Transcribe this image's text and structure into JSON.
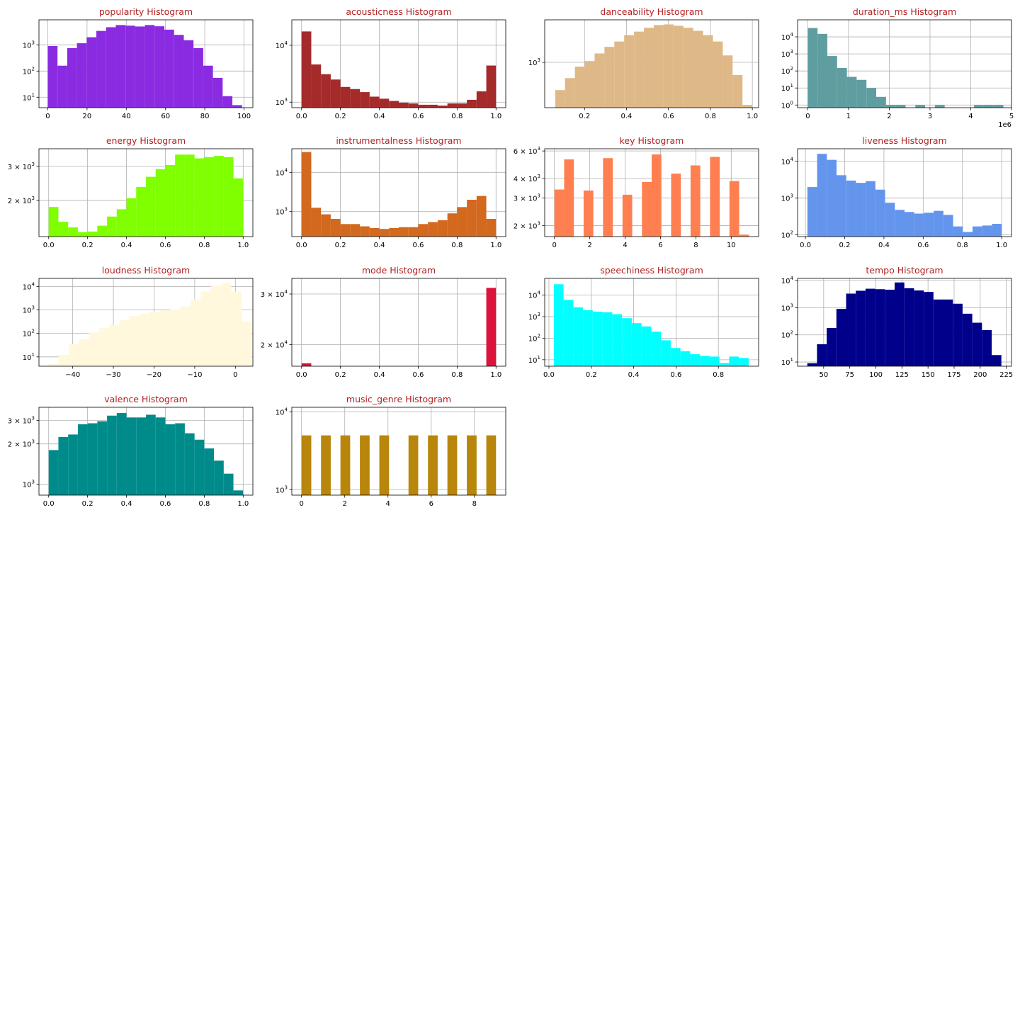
{
  "figure": {
    "background": "#ffffff",
    "title_color": "#b22222"
  },
  "chart_data": [
    {
      "type": "bar",
      "title": "popularity Histogram",
      "color": "#8a2be2",
      "x_range": [
        -4.5,
        104.5
      ],
      "y_scale": "log",
      "y_range": [
        4,
        9000
      ],
      "x_ticks": [
        0,
        20,
        40,
        60,
        80,
        100
      ],
      "x_tick_labels": [
        "0",
        "20",
        "40",
        "60",
        "80",
        "100"
      ],
      "y_ticks": [
        10,
        100,
        1000
      ],
      "y_tick_labels": [
        {
          "base": "10",
          "exp": "1"
        },
        {
          "base": "10",
          "exp": "2"
        },
        {
          "base": "10",
          "exp": "3"
        }
      ],
      "bin_edges": [
        0,
        4.95,
        9.9,
        14.85,
        19.8,
        24.75,
        29.7,
        34.65,
        39.6,
        44.55,
        49.5,
        54.45,
        59.4,
        64.35,
        69.3,
        74.25,
        79.2,
        84.15,
        89.1,
        94.05,
        99
      ],
      "counts": [
        900,
        160,
        750,
        1150,
        1950,
        3400,
        4700,
        5700,
        5400,
        5000,
        5700,
        5100,
        3800,
        2400,
        1500,
        750,
        160,
        55,
        11,
        5
      ]
    },
    {
      "type": "bar",
      "title": "acousticness Histogram",
      "color": "#a52a2a",
      "x_range": [
        -0.05,
        1.05
      ],
      "y_scale": "log",
      "y_range": [
        800,
        28000
      ],
      "x_ticks": [
        0,
        0.2,
        0.4,
        0.6,
        0.8,
        1.0
      ],
      "x_tick_labels": [
        "0.0",
        "0.2",
        "0.4",
        "0.6",
        "0.8",
        "1.0"
      ],
      "y_ticks": [
        1000,
        10000
      ],
      "y_tick_labels": [
        {
          "base": "10",
          "exp": "3"
        },
        {
          "base": "10",
          "exp": "4"
        }
      ],
      "bin_edges": [
        0,
        0.05,
        0.1,
        0.15,
        0.2,
        0.25,
        0.3,
        0.35,
        0.4,
        0.45,
        0.5,
        0.55,
        0.6,
        0.65,
        0.7,
        0.75,
        0.8,
        0.85,
        0.9,
        0.95,
        1.0
      ],
      "counts": [
        17500,
        4600,
        3100,
        2500,
        1850,
        1700,
        1500,
        1250,
        1150,
        1050,
        980,
        950,
        900,
        900,
        870,
        950,
        950,
        1100,
        1550,
        4400
      ]
    },
    {
      "type": "bar",
      "title": "danceability Histogram",
      "color": "#deb887",
      "x_range": [
        0.01,
        1.03
      ],
      "y_scale": "log",
      "y_range": [
        180,
        5000
      ],
      "x_ticks": [
        0.2,
        0.4,
        0.6,
        0.8,
        1.0
      ],
      "x_tick_labels": [
        "0.2",
        "0.4",
        "0.6",
        "0.8",
        "1.0"
      ],
      "y_ticks": [
        1000
      ],
      "y_tick_labels": [
        {
          "base": "10",
          "exp": "3"
        }
      ],
      "bin_edges": [
        0.06,
        0.107,
        0.154,
        0.201,
        0.248,
        0.295,
        0.342,
        0.389,
        0.436,
        0.483,
        0.53,
        0.577,
        0.624,
        0.671,
        0.718,
        0.765,
        0.812,
        0.859,
        0.906,
        0.953,
        1.0
      ],
      "counts": [
        350,
        550,
        850,
        1050,
        1400,
        1800,
        2200,
        2800,
        3200,
        3700,
        4100,
        4200,
        4000,
        3700,
        3300,
        2800,
        2200,
        1300,
        620,
        200
      ]
    },
    {
      "type": "bar",
      "title": "duration_ms Histogram",
      "color": "#5f9ea0",
      "x_range": [
        -250000,
        5000000
      ],
      "y_scale": "log",
      "y_range": [
        0.7,
        100000
      ],
      "x_ticks": [
        0,
        1000000,
        2000000,
        3000000,
        4000000,
        5000000
      ],
      "x_tick_labels": [
        "0",
        "1",
        "2",
        "3",
        "4",
        "5"
      ],
      "x_offset_label": "1e6",
      "y_ticks": [
        1,
        10,
        100,
        1000,
        10000
      ],
      "y_tick_labels": [
        {
          "base": "10",
          "exp": "0"
        },
        {
          "base": "10",
          "exp": "1"
        },
        {
          "base": "10",
          "exp": "2"
        },
        {
          "base": "10",
          "exp": "3"
        },
        {
          "base": "10",
          "exp": "4"
        }
      ],
      "bin_edges": [
        0,
        240000,
        480000,
        720000,
        960000,
        1200000,
        1440000,
        1680000,
        1920000,
        2160000,
        2400000,
        2640000,
        2880000,
        3120000,
        3360000,
        3600000,
        3840000,
        4080000,
        4320000,
        4560000,
        4800000
      ],
      "counts": [
        33000,
        15000,
        750,
        150,
        45,
        30,
        10,
        3,
        1,
        1,
        0,
        1,
        0,
        1,
        0,
        0,
        0,
        1,
        1,
        1
      ]
    },
    {
      "type": "bar",
      "title": "energy Histogram",
      "color": "#7fff00",
      "x_range": [
        -0.05,
        1.05
      ],
      "y_scale": "log",
      "y_range": [
        1300,
        3700
      ],
      "x_ticks": [
        0,
        0.2,
        0.4,
        0.6,
        0.8,
        1.0
      ],
      "x_tick_labels": [
        "0.0",
        "0.2",
        "0.4",
        "0.6",
        "0.8",
        "1.0"
      ],
      "y_ticks": [
        2000,
        3000
      ],
      "y_tick_labels": [
        {
          "base": "2 × 10",
          "exp": "3"
        },
        {
          "base": "3 × 10",
          "exp": "3"
        }
      ],
      "bin_edges": [
        0,
        0.05,
        0.1,
        0.15,
        0.2,
        0.25,
        0.3,
        0.35,
        0.4,
        0.45,
        0.5,
        0.55,
        0.6,
        0.65,
        0.7,
        0.75,
        0.8,
        0.85,
        0.9,
        0.95,
        1.0
      ],
      "counts": [
        1850,
        1550,
        1450,
        1370,
        1380,
        1480,
        1650,
        1800,
        2050,
        2350,
        2650,
        2900,
        3050,
        3450,
        3450,
        3300,
        3350,
        3400,
        3350,
        2600
      ]
    },
    {
      "type": "bar",
      "title": "instrumentalness Histogram",
      "color": "#d2691e",
      "x_range": [
        -0.05,
        1.05
      ],
      "y_scale": "log",
      "y_range": [
        230,
        40000
      ],
      "x_ticks": [
        0,
        0.2,
        0.4,
        0.6,
        0.8,
        1.0
      ],
      "x_tick_labels": [
        "0.0",
        "0.2",
        "0.4",
        "0.6",
        "0.8",
        "1.0"
      ],
      "y_ticks": [
        1000,
        10000
      ],
      "y_tick_labels": [
        {
          "base": "10",
          "exp": "3"
        },
        {
          "base": "10",
          "exp": "4"
        }
      ],
      "bin_edges": [
        0,
        0.05,
        0.1,
        0.15,
        0.2,
        0.25,
        0.3,
        0.35,
        0.4,
        0.45,
        0.5,
        0.55,
        0.6,
        0.65,
        0.7,
        0.75,
        0.8,
        0.85,
        0.9,
        0.95,
        1.0
      ],
      "counts": [
        33000,
        1250,
        850,
        650,
        480,
        480,
        420,
        380,
        360,
        380,
        400,
        400,
        480,
        540,
        600,
        900,
        1300,
        2000,
        2500,
        650
      ]
    },
    {
      "type": "bar",
      "title": "key Histogram",
      "color": "#ff7f50",
      "x_range": [
        -0.55,
        11.55
      ],
      "y_scale": "log",
      "y_range": [
        1700,
        6200
      ],
      "x_ticks": [
        0,
        2,
        4,
        6,
        8,
        10
      ],
      "x_tick_labels": [
        "0",
        "2",
        "4",
        "6",
        "8",
        "10"
      ],
      "y_ticks": [
        2000,
        3000,
        4000,
        6000
      ],
      "y_tick_labels": [
        {
          "base": "2 × 10",
          "exp": "3"
        },
        {
          "base": "3 × 10",
          "exp": "3"
        },
        {
          "base": "4 × 10",
          "exp": "3"
        },
        {
          "base": "6 × 10",
          "exp": "3"
        }
      ],
      "bin_edges": [
        0,
        0.55,
        1.1,
        1.65,
        2.2,
        2.75,
        3.3,
        3.85,
        4.4,
        4.95,
        5.5,
        6.05,
        6.6,
        7.15,
        7.7,
        8.25,
        8.8,
        9.35,
        9.9,
        10.45,
        11.0
      ],
      "counts": [
        3400,
        5300,
        0,
        3350,
        0,
        5400,
        0,
        3150,
        0,
        3800,
        5700,
        0,
        4300,
        0,
        4850,
        0,
        5500,
        0,
        3850,
        1750
      ]
    },
    {
      "type": "bar",
      "title": "liveness Histogram",
      "color": "#6495ed",
      "x_range": [
        -0.04,
        1.05
      ],
      "y_scale": "log",
      "y_range": [
        90,
        22000
      ],
      "x_ticks": [
        0,
        0.2,
        0.4,
        0.6,
        0.8,
        1.0
      ],
      "x_tick_labels": [
        "0.0",
        "0.2",
        "0.4",
        "0.6",
        "0.8",
        "1.0"
      ],
      "y_ticks": [
        100,
        1000,
        10000
      ],
      "y_tick_labels": [
        {
          "base": "10",
          "exp": "2"
        },
        {
          "base": "10",
          "exp": "3"
        },
        {
          "base": "10",
          "exp": "4"
        }
      ],
      "bin_edges": [
        0.01,
        0.0595,
        0.109,
        0.1585,
        0.208,
        0.2575,
        0.307,
        0.3565,
        0.406,
        0.4555,
        0.505,
        0.5545,
        0.604,
        0.6535,
        0.703,
        0.7525,
        0.802,
        0.8515,
        0.901,
        0.9505,
        1.0
      ],
      "counts": [
        2000,
        16000,
        11000,
        4200,
        3000,
        2600,
        2900,
        1700,
        750,
        480,
        420,
        380,
        400,
        450,
        350,
        170,
        120,
        170,
        180,
        200
      ]
    },
    {
      "type": "bar",
      "title": "loudness Histogram",
      "color": "#fff8dc",
      "x_range": [
        -48.3,
        4.3
      ],
      "y_scale": "log",
      "y_range": [
        4,
        22000
      ],
      "x_ticks": [
        -40,
        -30,
        -20,
        -10,
        0
      ],
      "x_tick_labels": [
        "−40",
        "−30",
        "−20",
        "−10",
        "0"
      ],
      "y_ticks": [
        10,
        100,
        1000,
        10000
      ],
      "y_tick_labels": [
        {
          "base": "10",
          "exp": "1"
        },
        {
          "base": "10",
          "exp": "2"
        },
        {
          "base": "10",
          "exp": "3"
        },
        {
          "base": "10",
          "exp": "4"
        }
      ],
      "bin_edges": [
        -46,
        -43.5,
        -41,
        -38.5,
        -36,
        -33.5,
        -31,
        -28.5,
        -26,
        -23.5,
        -21,
        -18.5,
        -16,
        -13.5,
        -11,
        -8.5,
        -6,
        -3.5,
        -1,
        1.5,
        4
      ],
      "counts": [
        5,
        12,
        35,
        55,
        110,
        170,
        230,
        380,
        550,
        700,
        800,
        950,
        1050,
        1400,
        2800,
        6000,
        11000,
        14000,
        6000,
        320
      ]
    },
    {
      "type": "bar",
      "title": "mode Histogram",
      "color": "#dc143c",
      "x_range": [
        -0.05,
        1.05
      ],
      "y_scale": "log",
      "y_range": [
        16800,
        34000
      ],
      "x_ticks": [
        0,
        0.2,
        0.4,
        0.6,
        0.8,
        1.0
      ],
      "x_tick_labels": [
        "0.0",
        "0.2",
        "0.4",
        "0.6",
        "0.8",
        "1.0"
      ],
      "y_ticks": [
        20000,
        30000
      ],
      "y_tick_labels": [
        {
          "base": "2 × 10",
          "exp": "4"
        },
        {
          "base": "3 × 10",
          "exp": "4"
        }
      ],
      "bin_edges": [
        0,
        0.05,
        0.1,
        0.15,
        0.2,
        0.25,
        0.3,
        0.35,
        0.4,
        0.45,
        0.5,
        0.55,
        0.6,
        0.65,
        0.7,
        0.75,
        0.8,
        0.85,
        0.9,
        0.95,
        1.0
      ],
      "counts": [
        17200,
        0,
        0,
        0,
        0,
        0,
        0,
        0,
        0,
        0,
        0,
        0,
        0,
        0,
        0,
        0,
        0,
        0,
        0,
        31500
      ]
    },
    {
      "type": "bar",
      "title": "speechiness Histogram",
      "color": "#00ffff",
      "x_range": [
        -0.02,
        0.99
      ],
      "y_scale": "log",
      "y_range": [
        5,
        60000
      ],
      "x_ticks": [
        0,
        0.2,
        0.4,
        0.6,
        0.8
      ],
      "x_tick_labels": [
        "0.0",
        "0.2",
        "0.4",
        "0.6",
        "0.8"
      ],
      "y_ticks": [
        10,
        100,
        1000,
        10000
      ],
      "y_tick_labels": [
        {
          "base": "10",
          "exp": "1"
        },
        {
          "base": "10",
          "exp": "2"
        },
        {
          "base": "10",
          "exp": "3"
        },
        {
          "base": "10",
          "exp": "4"
        }
      ],
      "bin_edges": [
        0.023,
        0.069,
        0.115,
        0.161,
        0.207,
        0.253,
        0.299,
        0.345,
        0.391,
        0.437,
        0.483,
        0.529,
        0.575,
        0.621,
        0.667,
        0.713,
        0.759,
        0.805,
        0.851,
        0.897,
        0.943
      ],
      "counts": [
        32000,
        6000,
        2700,
        2000,
        1700,
        1600,
        1300,
        850,
        500,
        350,
        200,
        80,
        35,
        25,
        18,
        15,
        14,
        7,
        14,
        12
      ]
    },
    {
      "type": "bar",
      "title": "tempo Histogram",
      "color": "#00008b",
      "x_range": [
        25,
        230
      ],
      "y_scale": "log",
      "y_range": [
        7,
        12000
      ],
      "x_ticks": [
        50,
        75,
        100,
        125,
        150,
        175,
        200,
        225
      ],
      "x_tick_labels": [
        "50",
        "75",
        "100",
        "125",
        "150",
        "175",
        "200",
        "225"
      ],
      "y_ticks": [
        10,
        100,
        1000,
        10000
      ],
      "y_tick_labels": [
        {
          "base": "10",
          "exp": "1"
        },
        {
          "base": "10",
          "exp": "2"
        },
        {
          "base": "10",
          "exp": "3"
        },
        {
          "base": "10",
          "exp": "4"
        }
      ],
      "bin_edges": [
        34.3,
        43.6,
        52.9,
        62.2,
        71.5,
        80.8,
        90.1,
        99.4,
        108.7,
        118.0,
        127.3,
        136.6,
        145.9,
        155.2,
        164.5,
        173.8,
        183.1,
        192.4,
        201.7,
        211.0,
        220.3
      ],
      "counts": [
        9,
        45,
        180,
        900,
        3300,
        4200,
        5000,
        4800,
        4600,
        8500,
        5200,
        4300,
        3800,
        2000,
        2000,
        1400,
        600,
        280,
        150,
        18
      ]
    },
    {
      "type": "bar",
      "title": "valence Histogram",
      "color": "#008b8b",
      "x_range": [
        -0.05,
        1.05
      ],
      "y_scale": "log",
      "y_range": [
        830,
        3750
      ],
      "x_ticks": [
        0,
        0.2,
        0.4,
        0.6,
        0.8,
        1.0
      ],
      "x_tick_labels": [
        "0.0",
        "0.2",
        "0.4",
        "0.6",
        "0.8",
        "1.0"
      ],
      "y_ticks": [
        1000,
        2000,
        3000
      ],
      "y_tick_labels": [
        {
          "base": "10",
          "exp": "3"
        },
        {
          "base": "2 × 10",
          "exp": "3"
        },
        {
          "base": "3 × 10",
          "exp": "3"
        }
      ],
      "bin_edges": [
        0,
        0.05,
        0.1,
        0.15,
        0.2,
        0.25,
        0.3,
        0.35,
        0.4,
        0.45,
        0.5,
        0.55,
        0.6,
        0.65,
        0.7,
        0.75,
        0.8,
        0.85,
        0.9,
        0.95,
        1.0
      ],
      "counts": [
        1800,
        2250,
        2350,
        2800,
        2850,
        2950,
        3250,
        3400,
        3150,
        3150,
        3300,
        3150,
        2800,
        2850,
        2400,
        2150,
        1850,
        1500,
        1200,
        900
      ]
    },
    {
      "type": "bar",
      "title": "music_genre Histogram",
      "color": "#b8860b",
      "x_range": [
        -0.45,
        9.45
      ],
      "y_scale": "log",
      "y_range": [
        850,
        11500
      ],
      "x_ticks": [
        0,
        2,
        4,
        6,
        8
      ],
      "x_tick_labels": [
        "0",
        "2",
        "4",
        "6",
        "8"
      ],
      "y_ticks": [
        1000,
        10000
      ],
      "y_tick_labels": [
        {
          "base": "10",
          "exp": "3"
        },
        {
          "base": "10",
          "exp": "4"
        }
      ],
      "bin_edges": [
        0,
        0.45,
        0.9,
        1.35,
        1.8,
        2.25,
        2.7,
        3.15,
        3.6,
        4.05,
        4.5,
        4.95,
        5.4,
        5.85,
        6.3,
        6.75,
        7.2,
        7.65,
        8.1,
        8.55,
        9.0
      ],
      "counts": [
        5000,
        0,
        5000,
        0,
        5000,
        0,
        5000,
        0,
        5000,
        0,
        0,
        5000,
        0,
        5000,
        0,
        5000,
        0,
        5000,
        0,
        5000
      ]
    }
  ]
}
